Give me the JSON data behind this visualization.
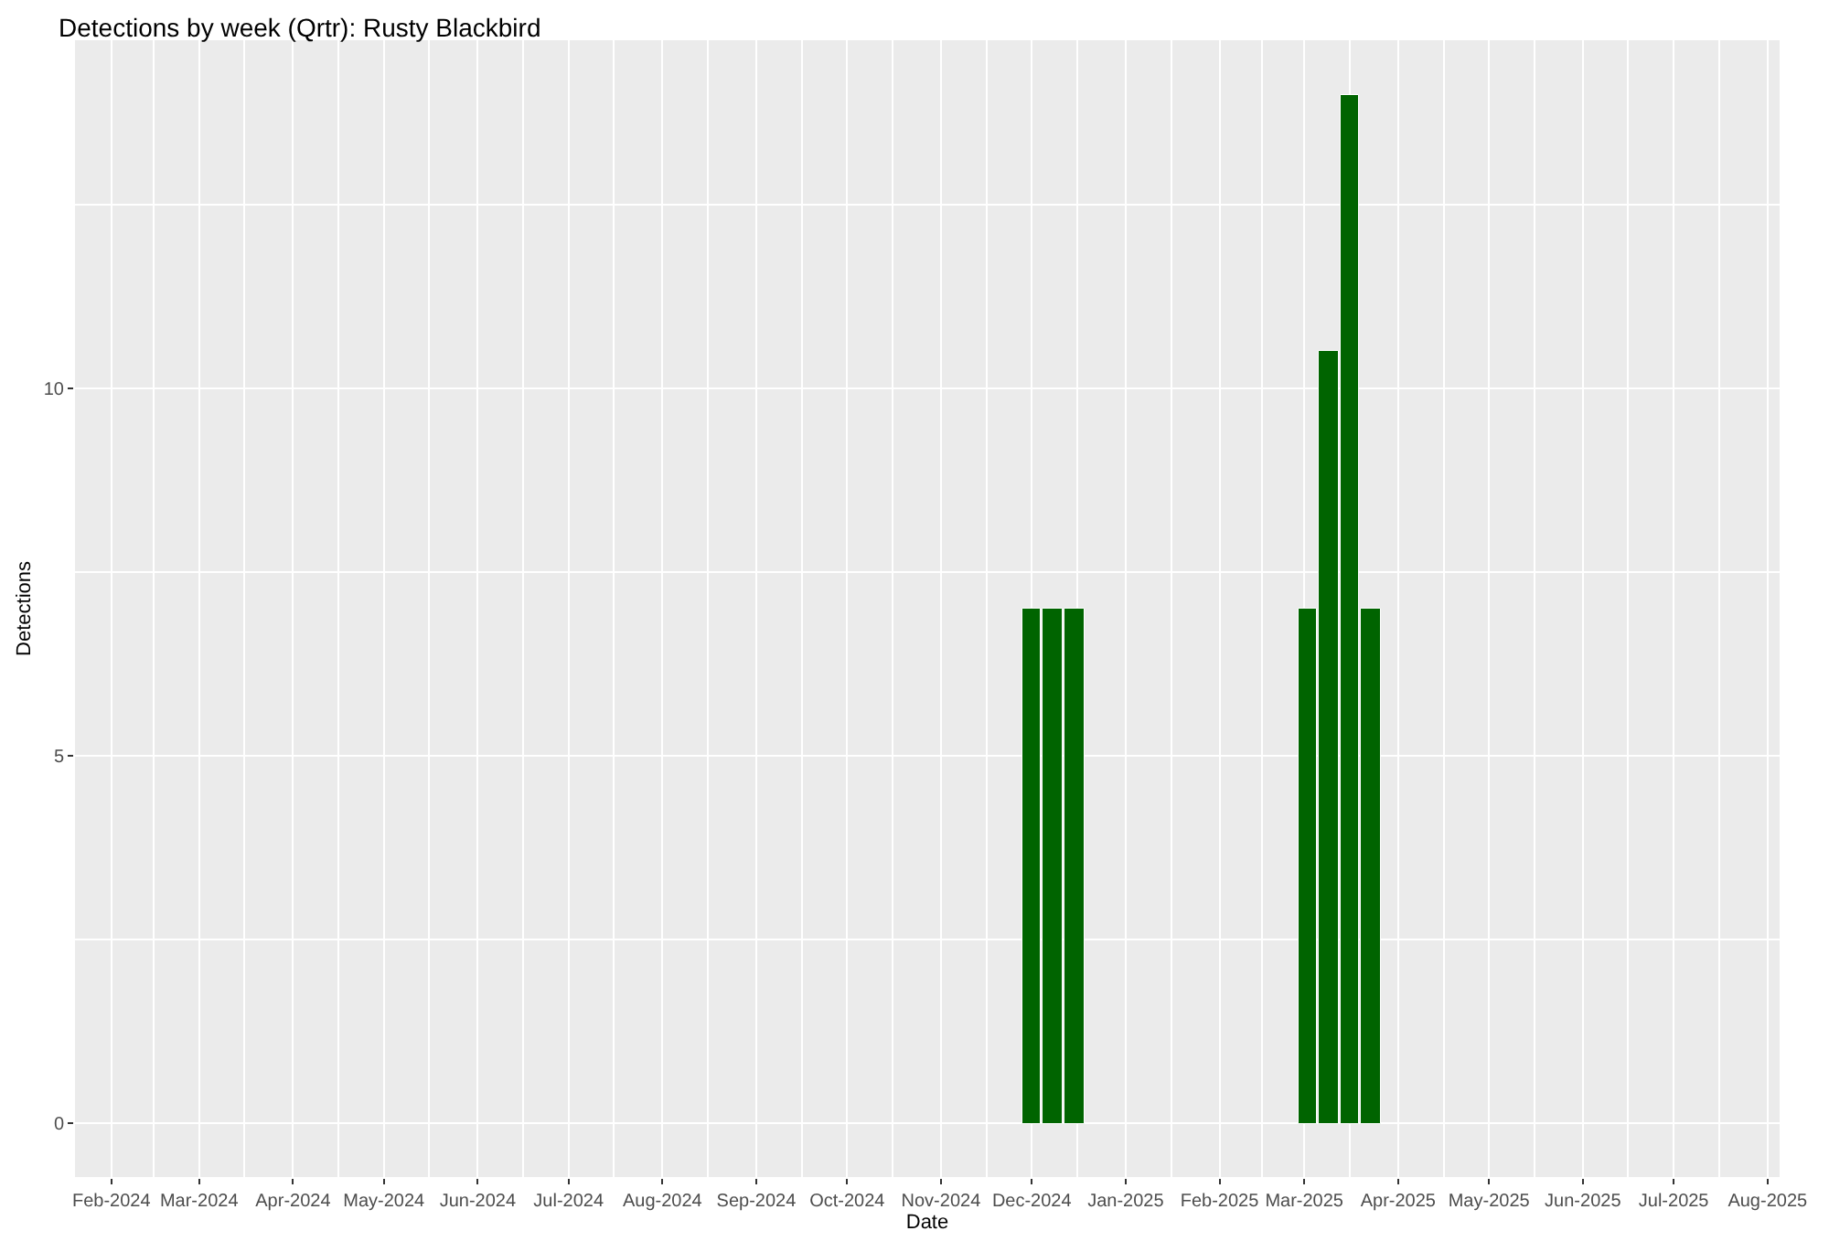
{
  "chart_data": {
    "type": "bar",
    "title": "Detections by week (Qrtr): Rusty Blackbird",
    "xlabel": "Date",
    "ylabel": "Detections",
    "x": [
      "2024-12-01",
      "2024-12-08",
      "2024-12-15",
      "2025-03-02",
      "2025-03-09",
      "2025-03-16",
      "2025-03-23"
    ],
    "values": [
      7,
      7,
      7,
      7,
      10.5,
      14,
      7
    ],
    "color": "#006400",
    "xlim": [
      "2024-01-20",
      "2025-08-05"
    ],
    "xticks": [
      {
        "value": "2024-02-01",
        "label": "Feb-2024"
      },
      {
        "value": "2024-03-01",
        "label": "Mar-2024"
      },
      {
        "value": "2024-04-01",
        "label": "Apr-2024"
      },
      {
        "value": "2024-05-01",
        "label": "May-2024"
      },
      {
        "value": "2024-06-01",
        "label": "Jun-2024"
      },
      {
        "value": "2024-07-01",
        "label": "Jul-2024"
      },
      {
        "value": "2024-08-01",
        "label": "Aug-2024"
      },
      {
        "value": "2024-09-01",
        "label": "Sep-2024"
      },
      {
        "value": "2024-10-01",
        "label": "Oct-2024"
      },
      {
        "value": "2024-11-01",
        "label": "Nov-2024"
      },
      {
        "value": "2024-12-01",
        "label": "Dec-2024"
      },
      {
        "value": "2025-01-01",
        "label": "Jan-2025"
      },
      {
        "value": "2025-02-01",
        "label": "Feb-2025"
      },
      {
        "value": "2025-03-01",
        "label": "Mar-2025"
      },
      {
        "value": "2025-04-01",
        "label": "Apr-2025"
      },
      {
        "value": "2025-05-01",
        "label": "May-2025"
      },
      {
        "value": "2025-06-01",
        "label": "Jun-2025"
      },
      {
        "value": "2025-07-01",
        "label": "Jul-2025"
      },
      {
        "value": "2025-08-01",
        "label": "Aug-2025"
      }
    ],
    "ylim": [
      -0.73,
      14.74
    ],
    "yticks": [
      0,
      5,
      10
    ],
    "grid": true
  }
}
